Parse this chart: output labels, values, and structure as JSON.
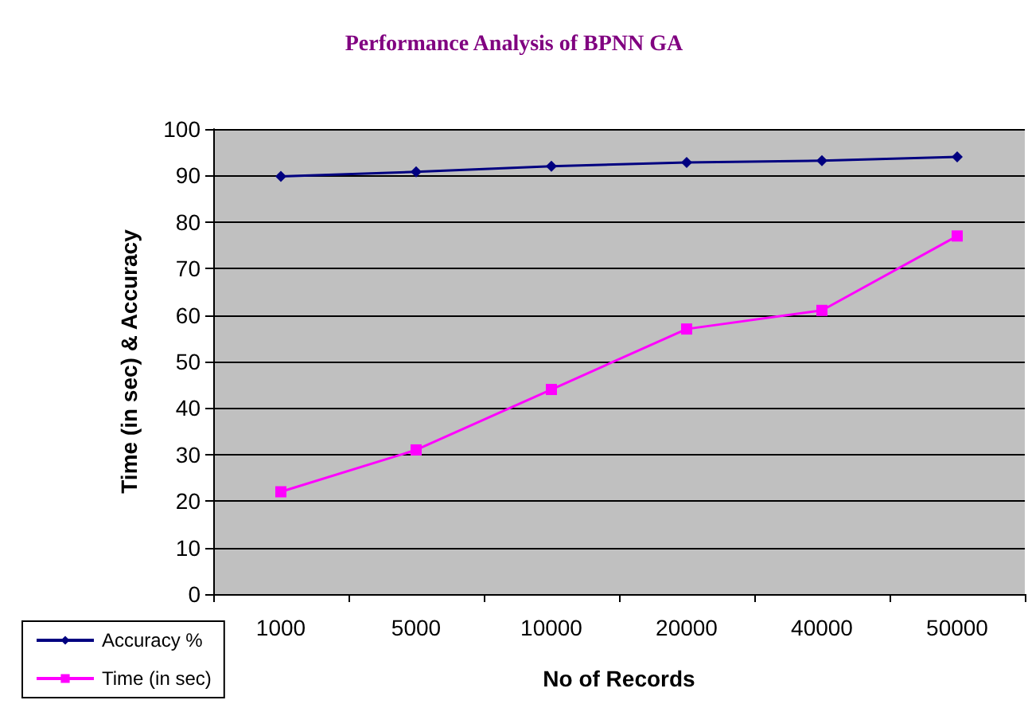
{
  "chart_data": {
    "type": "line",
    "title": "Performance Analysis of BPNN GA",
    "xlabel": "No of Records",
    "ylabel": "Time (in sec) & Accuracy",
    "categories": [
      "1000",
      "5000",
      "10000",
      "20000",
      "40000",
      "50000"
    ],
    "series": [
      {
        "name": "Accuracy %",
        "color": "#000080",
        "marker": "diamond",
        "values": [
          89.8,
          90.8,
          92,
          92.8,
          93.2,
          94
        ]
      },
      {
        "name": "Time (in sec)",
        "color": "#ff00ff",
        "marker": "square",
        "values": [
          22,
          31,
          44,
          57,
          61,
          77
        ]
      }
    ],
    "ylim": [
      0,
      100
    ],
    "yticks": [
      0,
      10,
      20,
      30,
      40,
      50,
      60,
      70,
      80,
      90,
      100
    ],
    "grid": "y",
    "legend": "bottom left"
  }
}
